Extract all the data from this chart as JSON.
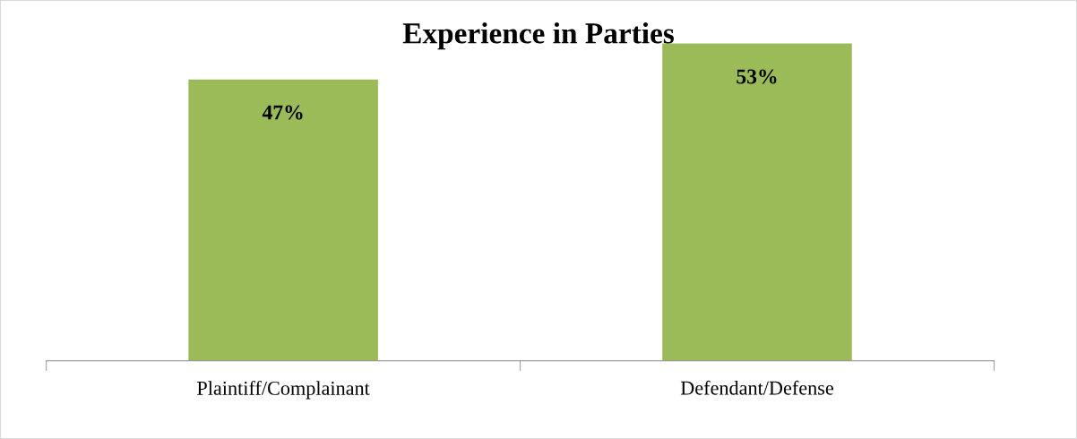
{
  "chart_data": {
    "type": "bar",
    "title": "Experience in Parties",
    "categories": [
      "Plaintiff/Complainant",
      "Defendant/Defense"
    ],
    "values": [
      47,
      53
    ],
    "color": "#9bbb59",
    "value_labels": [
      "47%",
      "53%"
    ],
    "grid": false,
    "legend": false
  }
}
